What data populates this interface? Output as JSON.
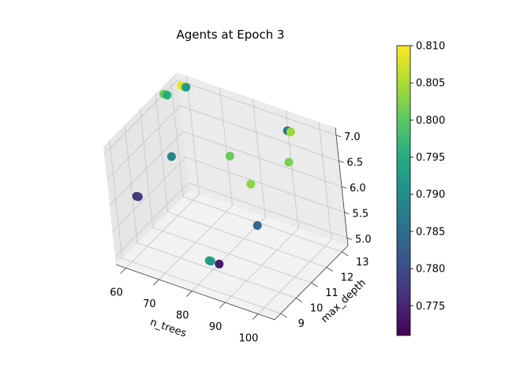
{
  "chart_data": {
    "type": "scatter3d",
    "title": "Agents at Epoch 3",
    "xlabel": "n_trees",
    "ylabel": "max_depth",
    "zlabel": "",
    "xlim": [
      57,
      105
    ],
    "ylim": [
      8.6,
      13.4
    ],
    "zlim": [
      4.85,
      7.15
    ],
    "xticks": [
      "60",
      "70",
      "80",
      "90",
      "100"
    ],
    "yticks": [
      "9",
      "10",
      "11",
      "12",
      "13"
    ],
    "zticks": [
      "5.0",
      "5.5",
      "6.0",
      "6.5",
      "7.0"
    ],
    "grid": true,
    "colormap": "viridis",
    "colorbar": {
      "range": [
        0.771,
        0.81
      ],
      "ticks": [
        "0.775",
        "0.780",
        "0.785",
        "0.790",
        "0.795",
        "0.800",
        "0.805",
        "0.810"
      ]
    },
    "points": [
      {
        "x": 82,
        "y": 10,
        "z": 5,
        "value": 0.774
      },
      {
        "x": 79,
        "y": 10,
        "z": 5,
        "value": 0.794
      },
      {
        "x": 79.5,
        "y": 10,
        "z": 5,
        "value": 0.792
      },
      {
        "x": 61,
        "y": 9.5,
        "z": 6,
        "value": 0.775
      },
      {
        "x": 61.5,
        "y": 9.5,
        "z": 6,
        "value": 0.778
      },
      {
        "x": 82,
        "y": 12.5,
        "z": 5,
        "value": 0.784
      },
      {
        "x": 60,
        "y": 12,
        "z": 6,
        "value": 0.789
      },
      {
        "x": 73,
        "y": 13,
        "z": 6,
        "value": 0.801
      },
      {
        "x": 84,
        "y": 12,
        "z": 6,
        "value": 0.803
      },
      {
        "x": 94,
        "y": 12.5,
        "z": 6.5,
        "value": 0.802
      },
      {
        "x": 93,
        "y": 12.8,
        "z": 7,
        "value": 0.786
      },
      {
        "x": 94,
        "y": 12.8,
        "z": 7,
        "value": 0.804
      },
      {
        "x": 57,
        "y": 12.5,
        "z": 7,
        "value": 0.801
      },
      {
        "x": 58,
        "y": 12.5,
        "z": 7,
        "value": 0.795
      },
      {
        "x": 59,
        "y": 13.2,
        "z": 7,
        "value": 0.809
      },
      {
        "x": 60,
        "y": 13.2,
        "z": 7,
        "value": 0.806
      },
      {
        "x": 60.5,
        "y": 13.2,
        "z": 7,
        "value": 0.792
      }
    ]
  }
}
